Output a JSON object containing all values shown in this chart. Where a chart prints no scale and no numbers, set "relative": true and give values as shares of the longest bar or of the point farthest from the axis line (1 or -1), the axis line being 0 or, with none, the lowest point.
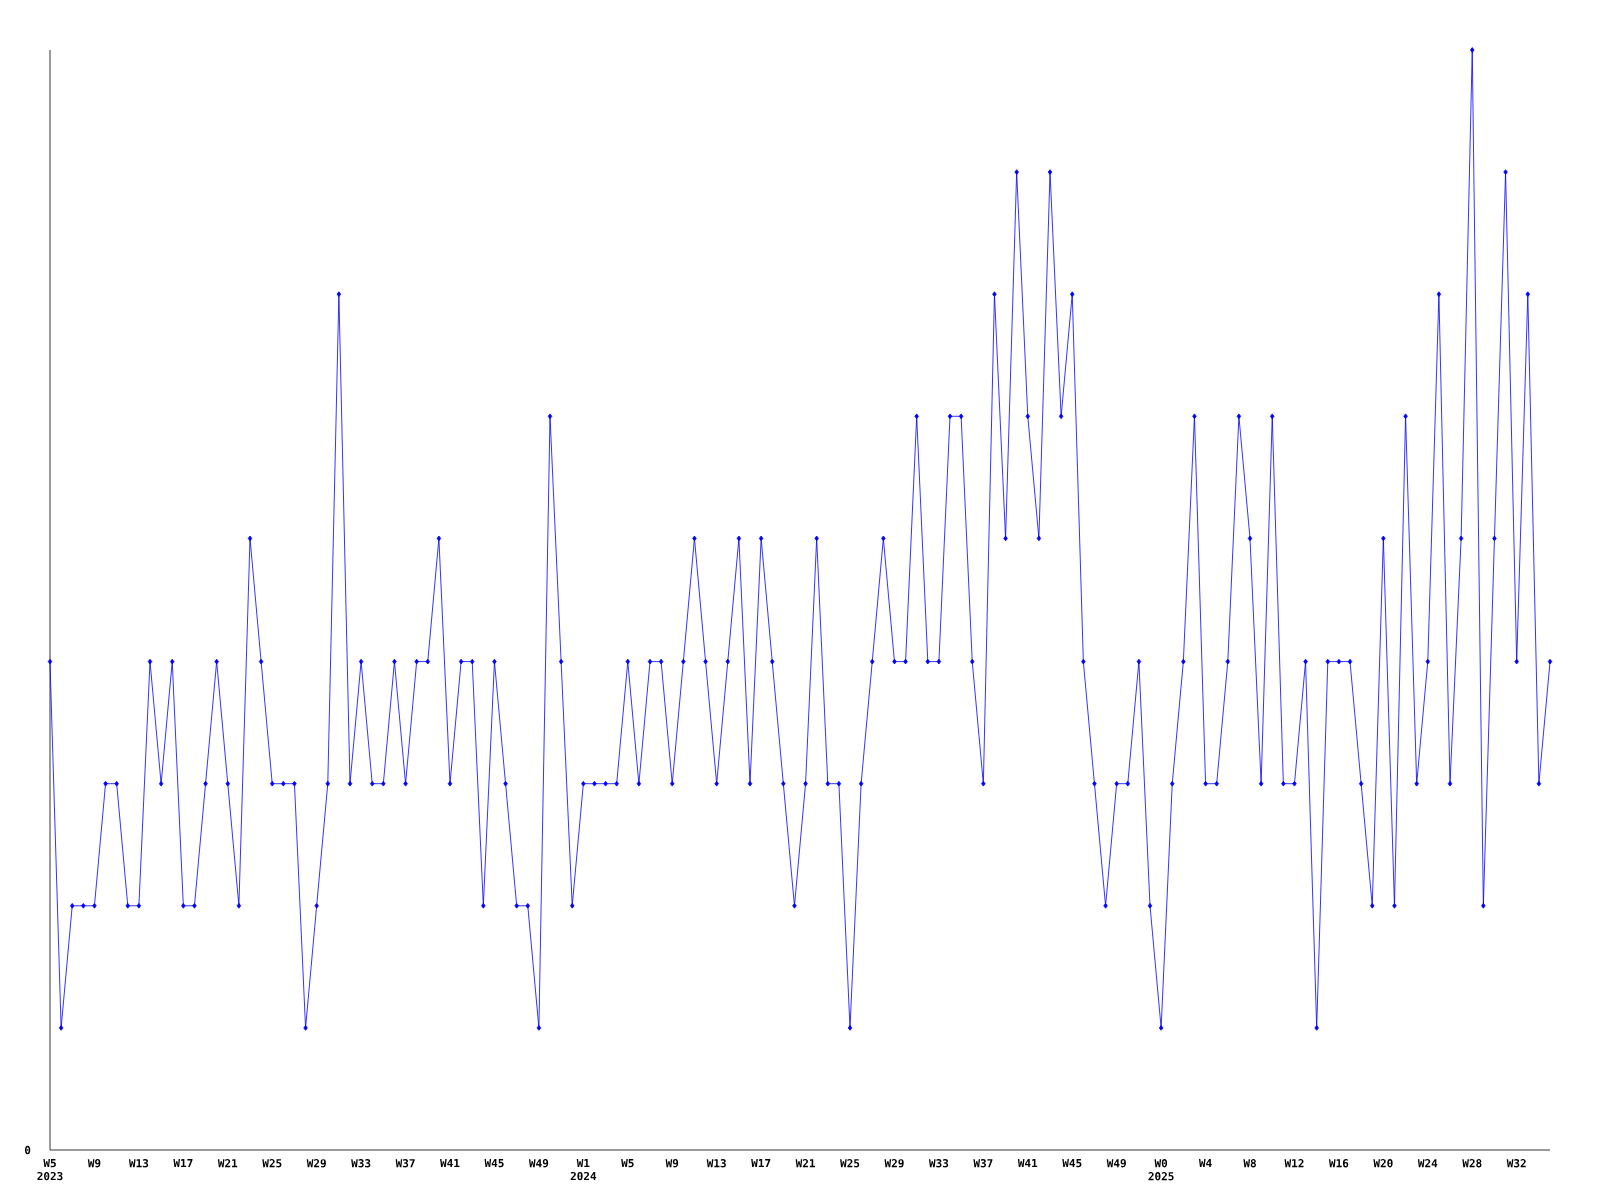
{
  "chart_data": {
    "type": "line",
    "relative": true,
    "color": "#0000ff",
    "marker": "diamond",
    "grid": false,
    "annotations": [
      "0"
    ],
    "categories": [
      "W5 2023",
      null,
      null,
      null,
      "W9",
      null,
      null,
      null,
      "W13",
      null,
      null,
      null,
      "W17",
      null,
      null,
      null,
      "W21",
      null,
      null,
      null,
      "W25",
      null,
      null,
      null,
      "W29",
      null,
      null,
      null,
      "W33",
      null,
      null,
      null,
      "W37",
      null,
      null,
      null,
      "W41",
      null,
      null,
      null,
      "W45",
      null,
      null,
      null,
      "W49",
      null,
      null,
      null,
      "W1 2024",
      null,
      null,
      null,
      "W5",
      null,
      null,
      null,
      "W9",
      null,
      null,
      null,
      "W13",
      null,
      null,
      null,
      "W17",
      null,
      null,
      null,
      "W21",
      null,
      null,
      null,
      "W25",
      null,
      null,
      null,
      "W29",
      null,
      null,
      null,
      "W33",
      null,
      null,
      null,
      "W37",
      null,
      null,
      null,
      "W41",
      null,
      null,
      null,
      "W45",
      null,
      null,
      null,
      "W49",
      null,
      null,
      null,
      "W0 2025",
      null,
      null,
      null,
      "W4",
      null,
      null,
      null,
      "W8",
      null,
      null,
      null,
      "W12",
      null,
      null,
      null,
      "W16",
      null,
      null,
      null,
      "W20",
      null,
      null,
      null,
      "W24",
      null,
      null,
      null,
      "W28",
      null,
      null,
      null,
      "W32",
      null,
      null,
      null
    ],
    "values": [
      0.444,
      0.111,
      0.222,
      0.222,
      0.222,
      0.333,
      0.333,
      0.222,
      0.222,
      0.444,
      0.333,
      0.444,
      0.222,
      0.222,
      0.333,
      0.444,
      0.333,
      0.222,
      0.556,
      0.444,
      0.333,
      0.333,
      0.333,
      0.111,
      0.222,
      0.333,
      0.778,
      0.333,
      0.444,
      0.333,
      0.333,
      0.444,
      0.333,
      0.444,
      0.444,
      0.556,
      0.333,
      0.444,
      0.444,
      0.222,
      0.444,
      0.333,
      0.222,
      0.222,
      0.111,
      0.667,
      0.444,
      0.222,
      0.333,
      0.333,
      0.333,
      0.333,
      0.444,
      0.333,
      0.444,
      0.444,
      0.333,
      0.444,
      0.556,
      0.444,
      0.333,
      0.444,
      0.556,
      0.333,
      0.556,
      0.444,
      0.333,
      0.222,
      0.333,
      0.556,
      0.333,
      0.333,
      0.111,
      0.333,
      0.444,
      0.556,
      0.444,
      0.444,
      0.667,
      0.444,
      0.444,
      0.667,
      0.667,
      0.444,
      0.333,
      0.778,
      0.556,
      0.889,
      0.667,
      0.556,
      0.889,
      0.667,
      0.778,
      0.444,
      0.333,
      0.222,
      0.333,
      0.333,
      0.444,
      0.222,
      0.111,
      0.333,
      0.444,
      0.667,
      0.333,
      0.333,
      0.444,
      0.667,
      0.556,
      0.333,
      0.667,
      0.333,
      0.333,
      0.444,
      0.111,
      0.444,
      0.444,
      0.444,
      0.333,
      0.222,
      0.556,
      0.222,
      0.667,
      0.333,
      0.444,
      0.778,
      0.333,
      0.556,
      1,
      0.222,
      0.556,
      0.889,
      0.444,
      0.778,
      0.333,
      0.444
    ]
  }
}
